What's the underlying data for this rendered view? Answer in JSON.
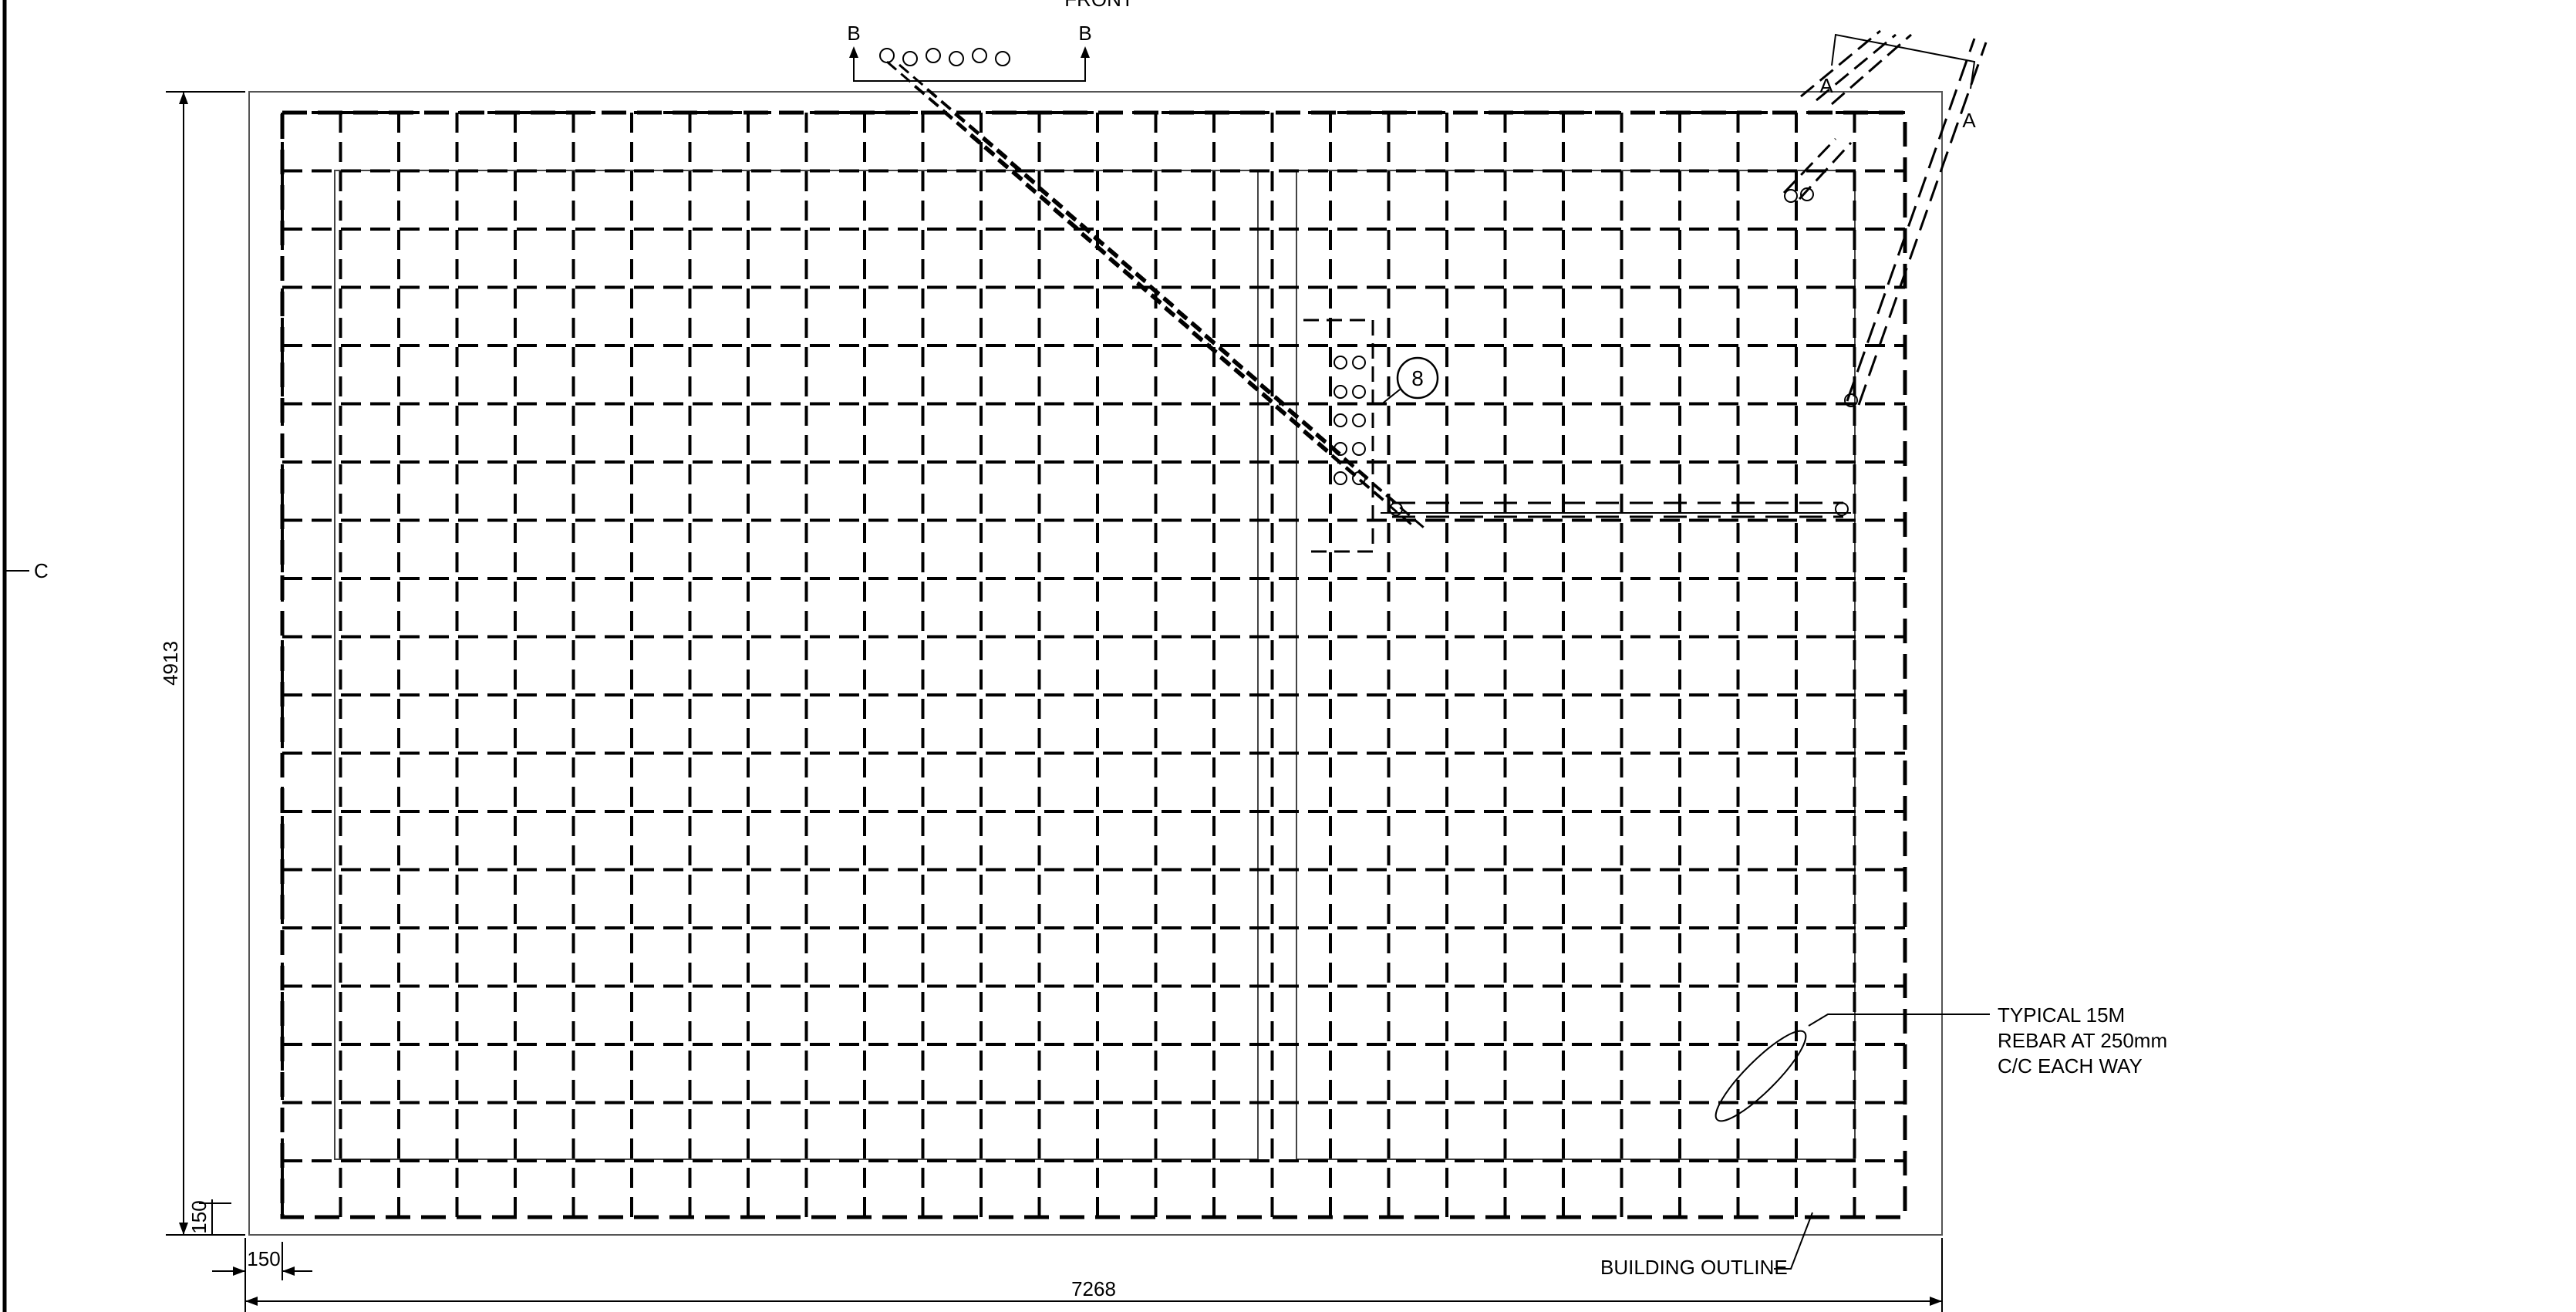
{
  "labels": {
    "front": "FRONT",
    "section_b_left": "B",
    "section_b_right": "B",
    "section_a_left": "A",
    "section_a_right": "A",
    "section_c": "C",
    "detail_tag": "8",
    "dim_height": "4913",
    "dim_width": "7268",
    "dim_offset_x": "150",
    "dim_offset_y": "150",
    "building_outline": "BUILDING OUTLINE",
    "rebar_note_1": "TYPICAL 15M",
    "rebar_note_2": "REBAR AT 250mm",
    "rebar_note_3": "C/C EACH WAY"
  },
  "colors": {
    "ink": "#000000",
    "paper": "#ffffff"
  }
}
